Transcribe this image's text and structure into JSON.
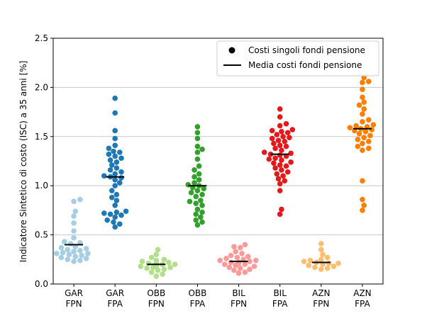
{
  "chart_data": {
    "type": "scatter",
    "title": "",
    "xlabel": "",
    "ylabel": "Indicatore Sintetico di costo (ISC) a 35 anni [%]",
    "ylim": [
      0.0,
      2.5
    ],
    "yticks": [
      "0.0",
      "0.5",
      "1.0",
      "1.5",
      "2.0",
      "2.5"
    ],
    "ytick_values": [
      0.0,
      0.5,
      1.0,
      1.5,
      2.0,
      2.5
    ],
    "grid": "horizontal",
    "legend_position": "top-right",
    "legend": {
      "points_label": "Costi singoli fondi pensione",
      "mean_label": "Media costi fondi pensione"
    },
    "categories": [
      {
        "line1": "GAR",
        "line2": "FPN"
      },
      {
        "line1": "GAR",
        "line2": "FPA"
      },
      {
        "line1": "OBB",
        "line2": "FPN"
      },
      {
        "line1": "OBB",
        "line2": "FPA"
      },
      {
        "line1": "BIL",
        "line2": "FPN"
      },
      {
        "line1": "BIL",
        "line2": "FPA"
      },
      {
        "line1": "AZN",
        "line2": "FPN"
      },
      {
        "line1": "AZN",
        "line2": "FPA"
      }
    ],
    "series": [
      {
        "name": "GAR FPN",
        "color": "#a6cee3",
        "mean": 0.4,
        "values": [
          0.86,
          0.84,
          0.74,
          0.69,
          0.62,
          0.54,
          0.47,
          0.43,
          0.42,
          0.41,
          0.38,
          0.37,
          0.36,
          0.35,
          0.34,
          0.33,
          0.33,
          0.32,
          0.31,
          0.31,
          0.3,
          0.29,
          0.28,
          0.27,
          0.26,
          0.25,
          0.24,
          0.23
        ]
      },
      {
        "name": "GAR FPA",
        "color": "#1f78b4",
        "mean": 1.09,
        "values": [
          1.89,
          1.74,
          1.56,
          1.48,
          1.41,
          1.38,
          1.35,
          1.34,
          1.32,
          1.3,
          1.28,
          1.26,
          1.24,
          1.21,
          1.18,
          1.16,
          1.14,
          1.12,
          1.1,
          1.09,
          1.08,
          1.06,
          1.03,
          1.0,
          0.95,
          0.91,
          0.88,
          0.85,
          0.8,
          0.74,
          0.73,
          0.72,
          0.71,
          0.7,
          0.68,
          0.65,
          0.63,
          0.61,
          0.58
        ]
      },
      {
        "name": "OBB FPN",
        "color": "#b2df8a",
        "mean": 0.2,
        "values": [
          0.35,
          0.3,
          0.27,
          0.25,
          0.24,
          0.23,
          0.22,
          0.22,
          0.21,
          0.21,
          0.2,
          0.2,
          0.19,
          0.19,
          0.18,
          0.18,
          0.17,
          0.17,
          0.16,
          0.15,
          0.14,
          0.12,
          0.1,
          0.08
        ]
      },
      {
        "name": "OBB FPA",
        "color": "#33a02c",
        "mean": 1.0,
        "values": [
          1.6,
          1.54,
          1.48,
          1.4,
          1.37,
          1.34,
          1.27,
          1.2,
          1.16,
          1.12,
          1.09,
          1.06,
          1.03,
          1.01,
          1.0,
          0.98,
          0.97,
          0.95,
          0.93,
          0.91,
          0.89,
          0.85,
          0.84,
          0.82,
          0.8,
          0.76,
          0.73,
          0.71,
          0.68,
          0.65,
          0.63,
          0.6
        ]
      },
      {
        "name": "BIL FPN",
        "color": "#fb9a99",
        "mean": 0.23,
        "values": [
          0.4,
          0.38,
          0.37,
          0.33,
          0.31,
          0.29,
          0.28,
          0.27,
          0.26,
          0.25,
          0.24,
          0.24,
          0.23,
          0.22,
          0.22,
          0.21,
          0.2,
          0.2,
          0.19,
          0.18,
          0.17,
          0.16,
          0.15,
          0.14,
          0.12,
          0.11
        ]
      },
      {
        "name": "BIL FPA",
        "color": "#e31a1c",
        "mean": 1.32,
        "values": [
          1.78,
          1.7,
          1.63,
          1.61,
          1.57,
          1.56,
          1.55,
          1.54,
          1.52,
          1.5,
          1.49,
          1.48,
          1.46,
          1.45,
          1.43,
          1.41,
          1.4,
          1.38,
          1.36,
          1.34,
          1.33,
          1.32,
          1.31,
          1.3,
          1.28,
          1.27,
          1.26,
          1.24,
          1.23,
          1.21,
          1.2,
          1.18,
          1.16,
          1.14,
          1.12,
          1.1,
          1.07,
          1.05,
          1.02,
          0.95,
          0.76,
          0.71
        ]
      },
      {
        "name": "AZN FPN",
        "color": "#fdbf6f",
        "mean": 0.22,
        "values": [
          0.41,
          0.35,
          0.3,
          0.27,
          0.25,
          0.24,
          0.23,
          0.22,
          0.21,
          0.21,
          0.2,
          0.19,
          0.18,
          0.17,
          0.16,
          0.15
        ]
      },
      {
        "name": "AZN FPA",
        "color": "#ff7f00",
        "mean": 1.58,
        "values": [
          2.1,
          2.06,
          2.05,
          1.98,
          1.9,
          1.85,
          1.82,
          1.78,
          1.73,
          1.67,
          1.65,
          1.62,
          1.61,
          1.6,
          1.59,
          1.58,
          1.57,
          1.56,
          1.55,
          1.53,
          1.51,
          1.49,
          1.47,
          1.45,
          1.43,
          1.4,
          1.38,
          1.36,
          1.05,
          0.86,
          0.8,
          0.75
        ]
      }
    ]
  }
}
